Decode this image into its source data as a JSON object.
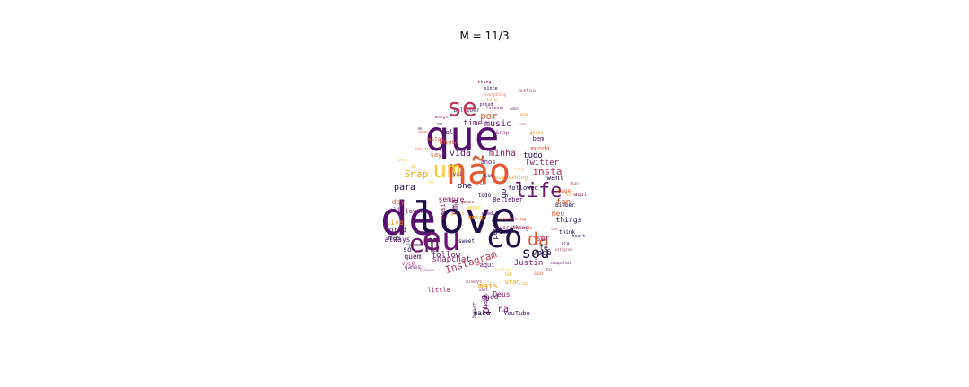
{
  "title": "M = 11/3",
  "colors": [
    "#1f0c48",
    "#550f6d",
    "#88226a",
    "#ba3655",
    "#e35933",
    "#f98e09",
    "#f9c932",
    "#fca50a",
    "#6a176e",
    "#a52c60"
  ],
  "words": [
    {
      "text": "de",
      "weight": 1.0,
      "color": "#550f6d"
    },
    {
      "text": "love",
      "weight": 0.95,
      "color": "#1f0c48"
    },
    {
      "text": "que",
      "weight": 0.85,
      "color": "#550f6d"
    },
    {
      "text": "não",
      "weight": 0.75,
      "color": "#e35933"
    },
    {
      "text": "eu",
      "weight": 0.7,
      "color": "#6a176e"
    },
    {
      "text": "co",
      "weight": 0.68,
      "color": "#1f0c48"
    },
    {
      "text": "um",
      "weight": 0.62,
      "color": "#f9c932"
    },
    {
      "text": "em",
      "weight": 0.6,
      "color": "#6a176e"
    },
    {
      "text": "se",
      "weight": 0.58,
      "color": "#ba3655"
    },
    {
      "text": "life",
      "weight": 0.5,
      "color": "#6a176e"
    },
    {
      "text": "da",
      "weight": 0.45,
      "color": "#e35933"
    },
    {
      "text": "sou",
      "weight": 0.42,
      "color": "#1f0c48"
    },
    {
      "text": "Instagram",
      "weight": 0.35,
      "color": "#ba3655"
    },
    {
      "text": "por",
      "weight": 0.28,
      "color": "#e35933"
    },
    {
      "text": "Snap",
      "weight": 0.28,
      "color": "#fca50a"
    },
    {
      "text": "insta",
      "weight": 0.27,
      "color": "#ba3655"
    },
    {
      "text": "music",
      "weight": 0.26,
      "color": "#550f6d"
    },
    {
      "text": "time",
      "weight": 0.25,
      "color": "#88226a"
    },
    {
      "text": "vida",
      "weight": 0.25,
      "color": "#550f6d"
    },
    {
      "text": "minha",
      "weight": 0.24,
      "color": "#88226a"
    },
    {
      "text": "para",
      "weight": 0.24,
      "color": "#1f0c48"
    },
    {
      "text": "one",
      "weight": 0.23,
      "color": "#1f0c48"
    },
    {
      "text": "snapchat",
      "weight": 0.23,
      "color": "#88226a"
    },
    {
      "text": "Twitter",
      "weight": 0.22,
      "color": "#88226a"
    },
    {
      "text": "tudo",
      "weight": 0.22,
      "color": "#1f0c48"
    },
    {
      "text": "follow",
      "weight": 0.22,
      "color": "#6a176e"
    },
    {
      "text": "mais",
      "weight": 0.22,
      "color": "#f98e09"
    },
    {
      "text": "fan",
      "weight": 0.21,
      "color": "#e35933"
    },
    {
      "text": "Justin",
      "weight": 0.21,
      "color": "#88226a"
    },
    {
      "text": "você",
      "weight": 0.21,
      "color": "#1f0c48"
    },
    {
      "text": "meu",
      "weight": 0.2,
      "color": "#e35933"
    },
    {
      "text": "ser",
      "weight": 0.2,
      "color": "#88226a"
    },
    {
      "text": "na",
      "weight": 0.2,
      "color": "#6a176e"
    },
    {
      "text": "go",
      "weight": 0.2,
      "color": "#1f0c48"
    },
    {
      "text": "people",
      "weight": 0.2,
      "color": "#1f0c48"
    },
    {
      "text": "uma",
      "weight": 0.19,
      "color": "#550f6d"
    },
    {
      "text": "mas",
      "weight": 0.19,
      "color": "#1f0c48"
    },
    {
      "text": "world",
      "weight": 0.19,
      "color": "#550f6d"
    },
    {
      "text": "know",
      "weight": 0.18,
      "color": "#e35933"
    },
    {
      "text": "want",
      "weight": 0.18,
      "color": "#1f0c48"
    },
    {
      "text": "sempre",
      "weight": 0.18,
      "color": "#88226a"
    },
    {
      "text": "things",
      "weight": 0.18,
      "color": "#1f0c48"
    },
    {
      "text": "Deus",
      "weight": 0.18,
      "color": "#88226a"
    },
    {
      "text": "pra",
      "weight": 0.18,
      "color": "#6a176e"
    },
    {
      "text": "só",
      "weight": 0.17,
      "color": "#1f0c48"
    },
    {
      "text": "quem",
      "weight": 0.16,
      "color": "#550f6d"
    },
    {
      "text": "always",
      "weight": 0.16,
      "color": "#550f6d"
    },
    {
      "text": "live",
      "weight": 0.16,
      "color": "#f98e09"
    },
    {
      "text": "day",
      "weight": 0.16,
      "color": "#e35933"
    },
    {
      "text": "te",
      "weight": 0.16,
      "color": "#1f0c48"
    },
    {
      "text": "aqui",
      "weight": 0.15,
      "color": "#550f6d"
    },
    {
      "text": "good",
      "weight": 0.15,
      "color": "#550f6d"
    },
    {
      "text": "little",
      "weight": 0.15,
      "color": "#a52c60"
    },
    {
      "text": "Belieber",
      "weight": 0.15,
      "color": "#550f6d"
    },
    {
      "text": "anos",
      "weight": 0.14,
      "color": "#550f6d"
    },
    {
      "text": "say",
      "weight": 0.14,
      "color": "#e35933"
    },
    {
      "text": "old",
      "weight": 0.14,
      "color": "#550f6d"
    },
    {
      "text": "bem",
      "weight": 0.14,
      "color": "#550f6d"
    },
    {
      "text": "mundo",
      "weight": 0.14,
      "color": "#e35933"
    },
    {
      "text": "lover",
      "weight": 0.14,
      "color": "#88226a"
    },
    {
      "text": "make",
      "weight": 0.14,
      "color": "#1f0c48"
    },
    {
      "text": "YouTube",
      "weight": 0.14,
      "color": "#550f6d"
    },
    {
      "text": "back",
      "weight": 0.13,
      "color": "#550f6d"
    },
    {
      "text": "stan",
      "weight": 0.13,
      "color": "#fca50a"
    },
    {
      "text": "email",
      "weight": 0.13,
      "color": "#88226a"
    },
    {
      "text": "followed",
      "weight": 0.13,
      "color": "#1f0c48"
    },
    {
      "text": "amor",
      "weight": 0.13,
      "color": "#f9c932"
    },
    {
      "text": "amigo",
      "weight": 0.13,
      "color": "#f98e09"
    },
    {
      "text": "Bieber",
      "weight": 0.12,
      "color": "#1f0c48"
    },
    {
      "text": "think",
      "weight": 0.12,
      "color": "#1f0c48"
    },
    {
      "text": "heart",
      "weight": 0.12,
      "color": "#550f6d"
    },
    {
      "text": "everything",
      "weight": 0.11,
      "color": "#550f6d"
    },
    {
      "text": "see",
      "weight": 0.11,
      "color": "#1f0c48"
    },
    {
      "text": "vai",
      "weight": 0.11,
      "color": "#88226a"
    },
    {
      "text": "estou",
      "weight": 0.11,
      "color": "#e35933"
    },
    {
      "text": "sweet",
      "weight": 0.1,
      "color": "#1f0c48"
    },
    {
      "text": "page",
      "weight": 0.1,
      "color": "#e35933"
    },
    {
      "text": "games",
      "weight": 0.1,
      "color": "#ba3655"
    },
    {
      "text": "thing",
      "weight": 0.1,
      "color": "#88226a"
    },
    {
      "text": "since",
      "weight": 0.1,
      "color": "#1f0c48"
    },
    {
      "text": "forever",
      "weight": 0.1,
      "color": "#88226a"
    },
    {
      "text": "everything",
      "weight": 0.1,
      "color": "#e35933"
    },
    {
      "text": "proud",
      "weight": 0.1,
      "color": "#550f6d"
    },
    {
      "text": "need",
      "weight": 0.1,
      "color": "#550f6d"
    },
    {
      "text": "friends",
      "weight": 0.1,
      "color": "#e35933"
    },
    {
      "text": "gosto",
      "weight": 0.1,
      "color": "#f98e09"
    },
    {
      "text": "todo",
      "weight": 0.1,
      "color": "#1f0c48"
    }
  ]
}
